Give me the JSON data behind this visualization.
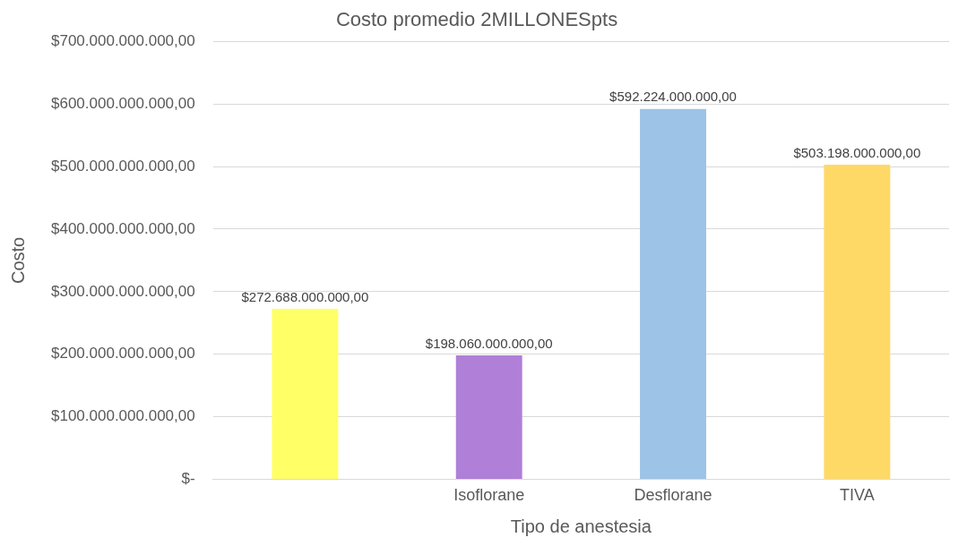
{
  "chart_data": {
    "type": "bar",
    "title": "Costo promedio 2MILLONESpts",
    "xlabel": "Tipo de anestesia",
    "ylabel": "Costo",
    "categories": [
      null,
      "Isoflorane",
      "Desflorane",
      "TIVA"
    ],
    "values": [
      272688000000,
      198060000000,
      592224000000,
      503198000000
    ],
    "colors": [
      "#ffff66",
      "#b07fd8",
      "#9dc3e6",
      "#ffd966"
    ],
    "value_labels": [
      "$272.688.000.000,00",
      "$198.060.000.000,00",
      "$592.224.000.000,00",
      "$503.198.000.000,00"
    ],
    "ylim": [
      0,
      700000000000
    ],
    "yticks": [
      {
        "value": 0,
        "label": "$-"
      },
      {
        "value": 100000000000,
        "label": "$100.000.000.000,00"
      },
      {
        "value": 200000000000,
        "label": "$200.000.000.000,00"
      },
      {
        "value": 300000000000,
        "label": "$300.000.000.000,00"
      },
      {
        "value": 400000000000,
        "label": "$400.000.000.000,00"
      },
      {
        "value": 500000000000,
        "label": "$500.000.000.000,00"
      },
      {
        "value": 600000000000,
        "label": "$600.000.000.000,00"
      },
      {
        "value": 700000000000,
        "label": "$700.000.000.000,00"
      }
    ],
    "grid": "y",
    "legend": false
  }
}
